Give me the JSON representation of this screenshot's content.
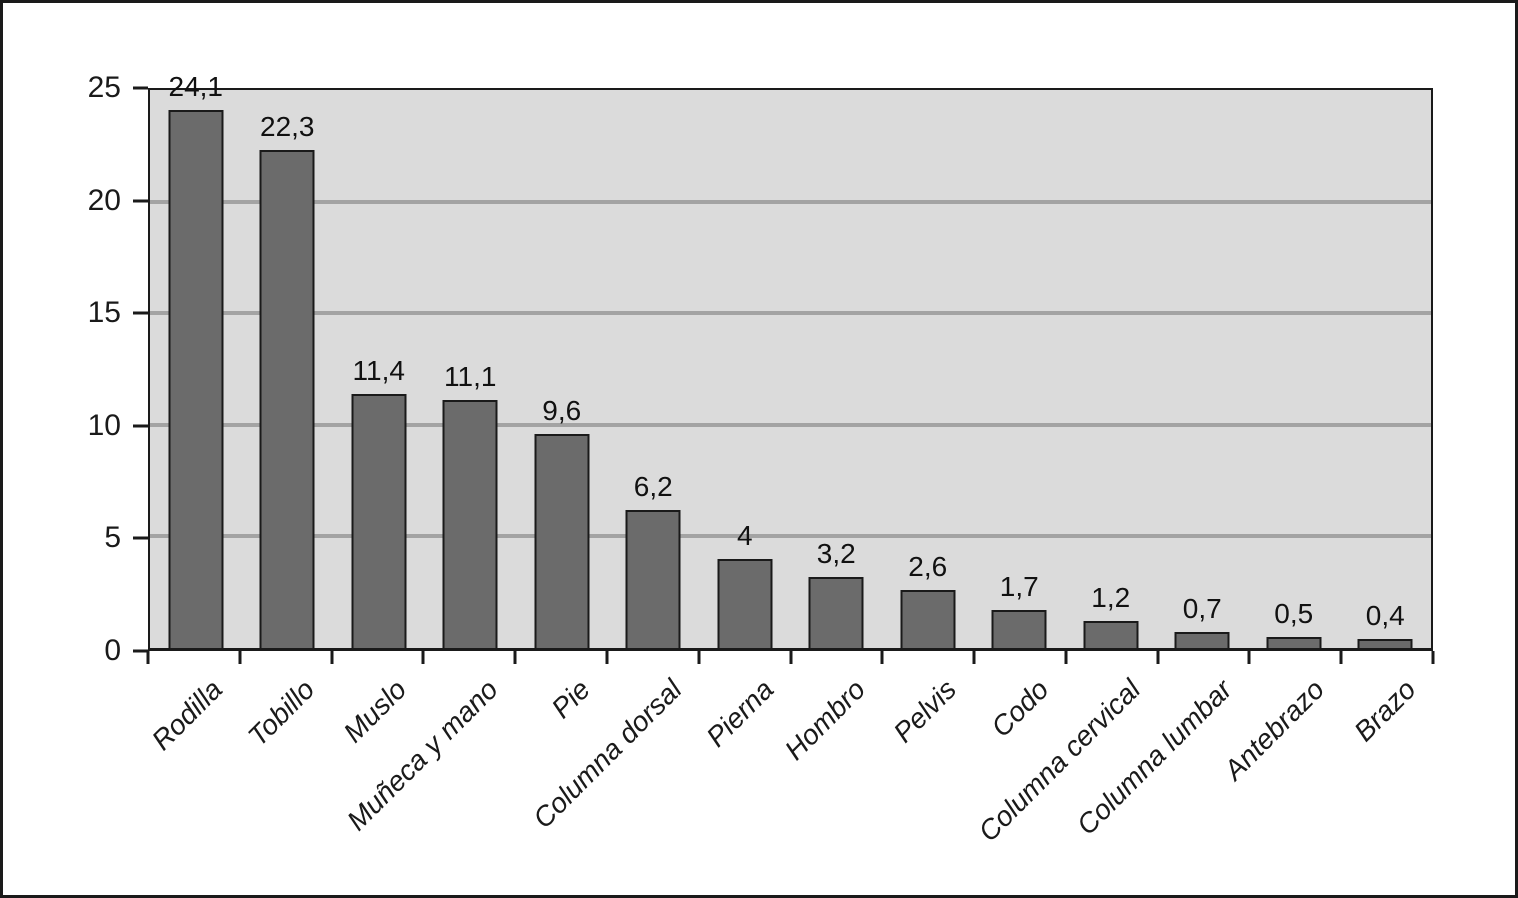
{
  "figure": {
    "background_color": "#FFFFFF",
    "frame_color": "#1a1a1a"
  },
  "chart_data": {
    "type": "bar",
    "title": "",
    "xlabel": "",
    "ylabel": "",
    "categories": [
      "Rodilla",
      "Tobillo",
      "Muslo",
      "Muñeca y mano",
      "Pie",
      "Columna dorsal",
      "Pierna",
      "Hombro",
      "Pelvis",
      "Codo",
      "Columna cervical",
      "Columna lumbar",
      "Antebrazo",
      "Brazo"
    ],
    "values": [
      24.1,
      22.3,
      11.4,
      11.1,
      9.6,
      6.2,
      4,
      3.2,
      2.6,
      1.7,
      1.2,
      0.7,
      0.5,
      0.4
    ],
    "value_labels": [
      "24,1",
      "22,3",
      "11,4",
      "11,1",
      "9,6",
      "6,2",
      "4",
      "3,2",
      "2,6",
      "1,7",
      "1,2",
      "0,7",
      "0,5",
      "0,4"
    ],
    "ylim": [
      0,
      25
    ],
    "yticks": [
      0,
      5,
      10,
      15,
      20,
      25
    ],
    "ytick_labels": [
      "0",
      "5",
      "10",
      "15",
      "20",
      "25"
    ],
    "gridline_values": [
      5,
      10,
      15,
      20
    ],
    "grid": "horizontal",
    "legend": "none",
    "category_label_rotation_deg": -45,
    "category_label_style": "italic",
    "colors": {
      "bar_fill": "#6B6B6B",
      "bar_border": "#1a1a1a",
      "plot_background": "#DBDBDB",
      "gridline": "#A3A3A3",
      "axis": "#1a1a1a",
      "text": "#111111"
    }
  }
}
